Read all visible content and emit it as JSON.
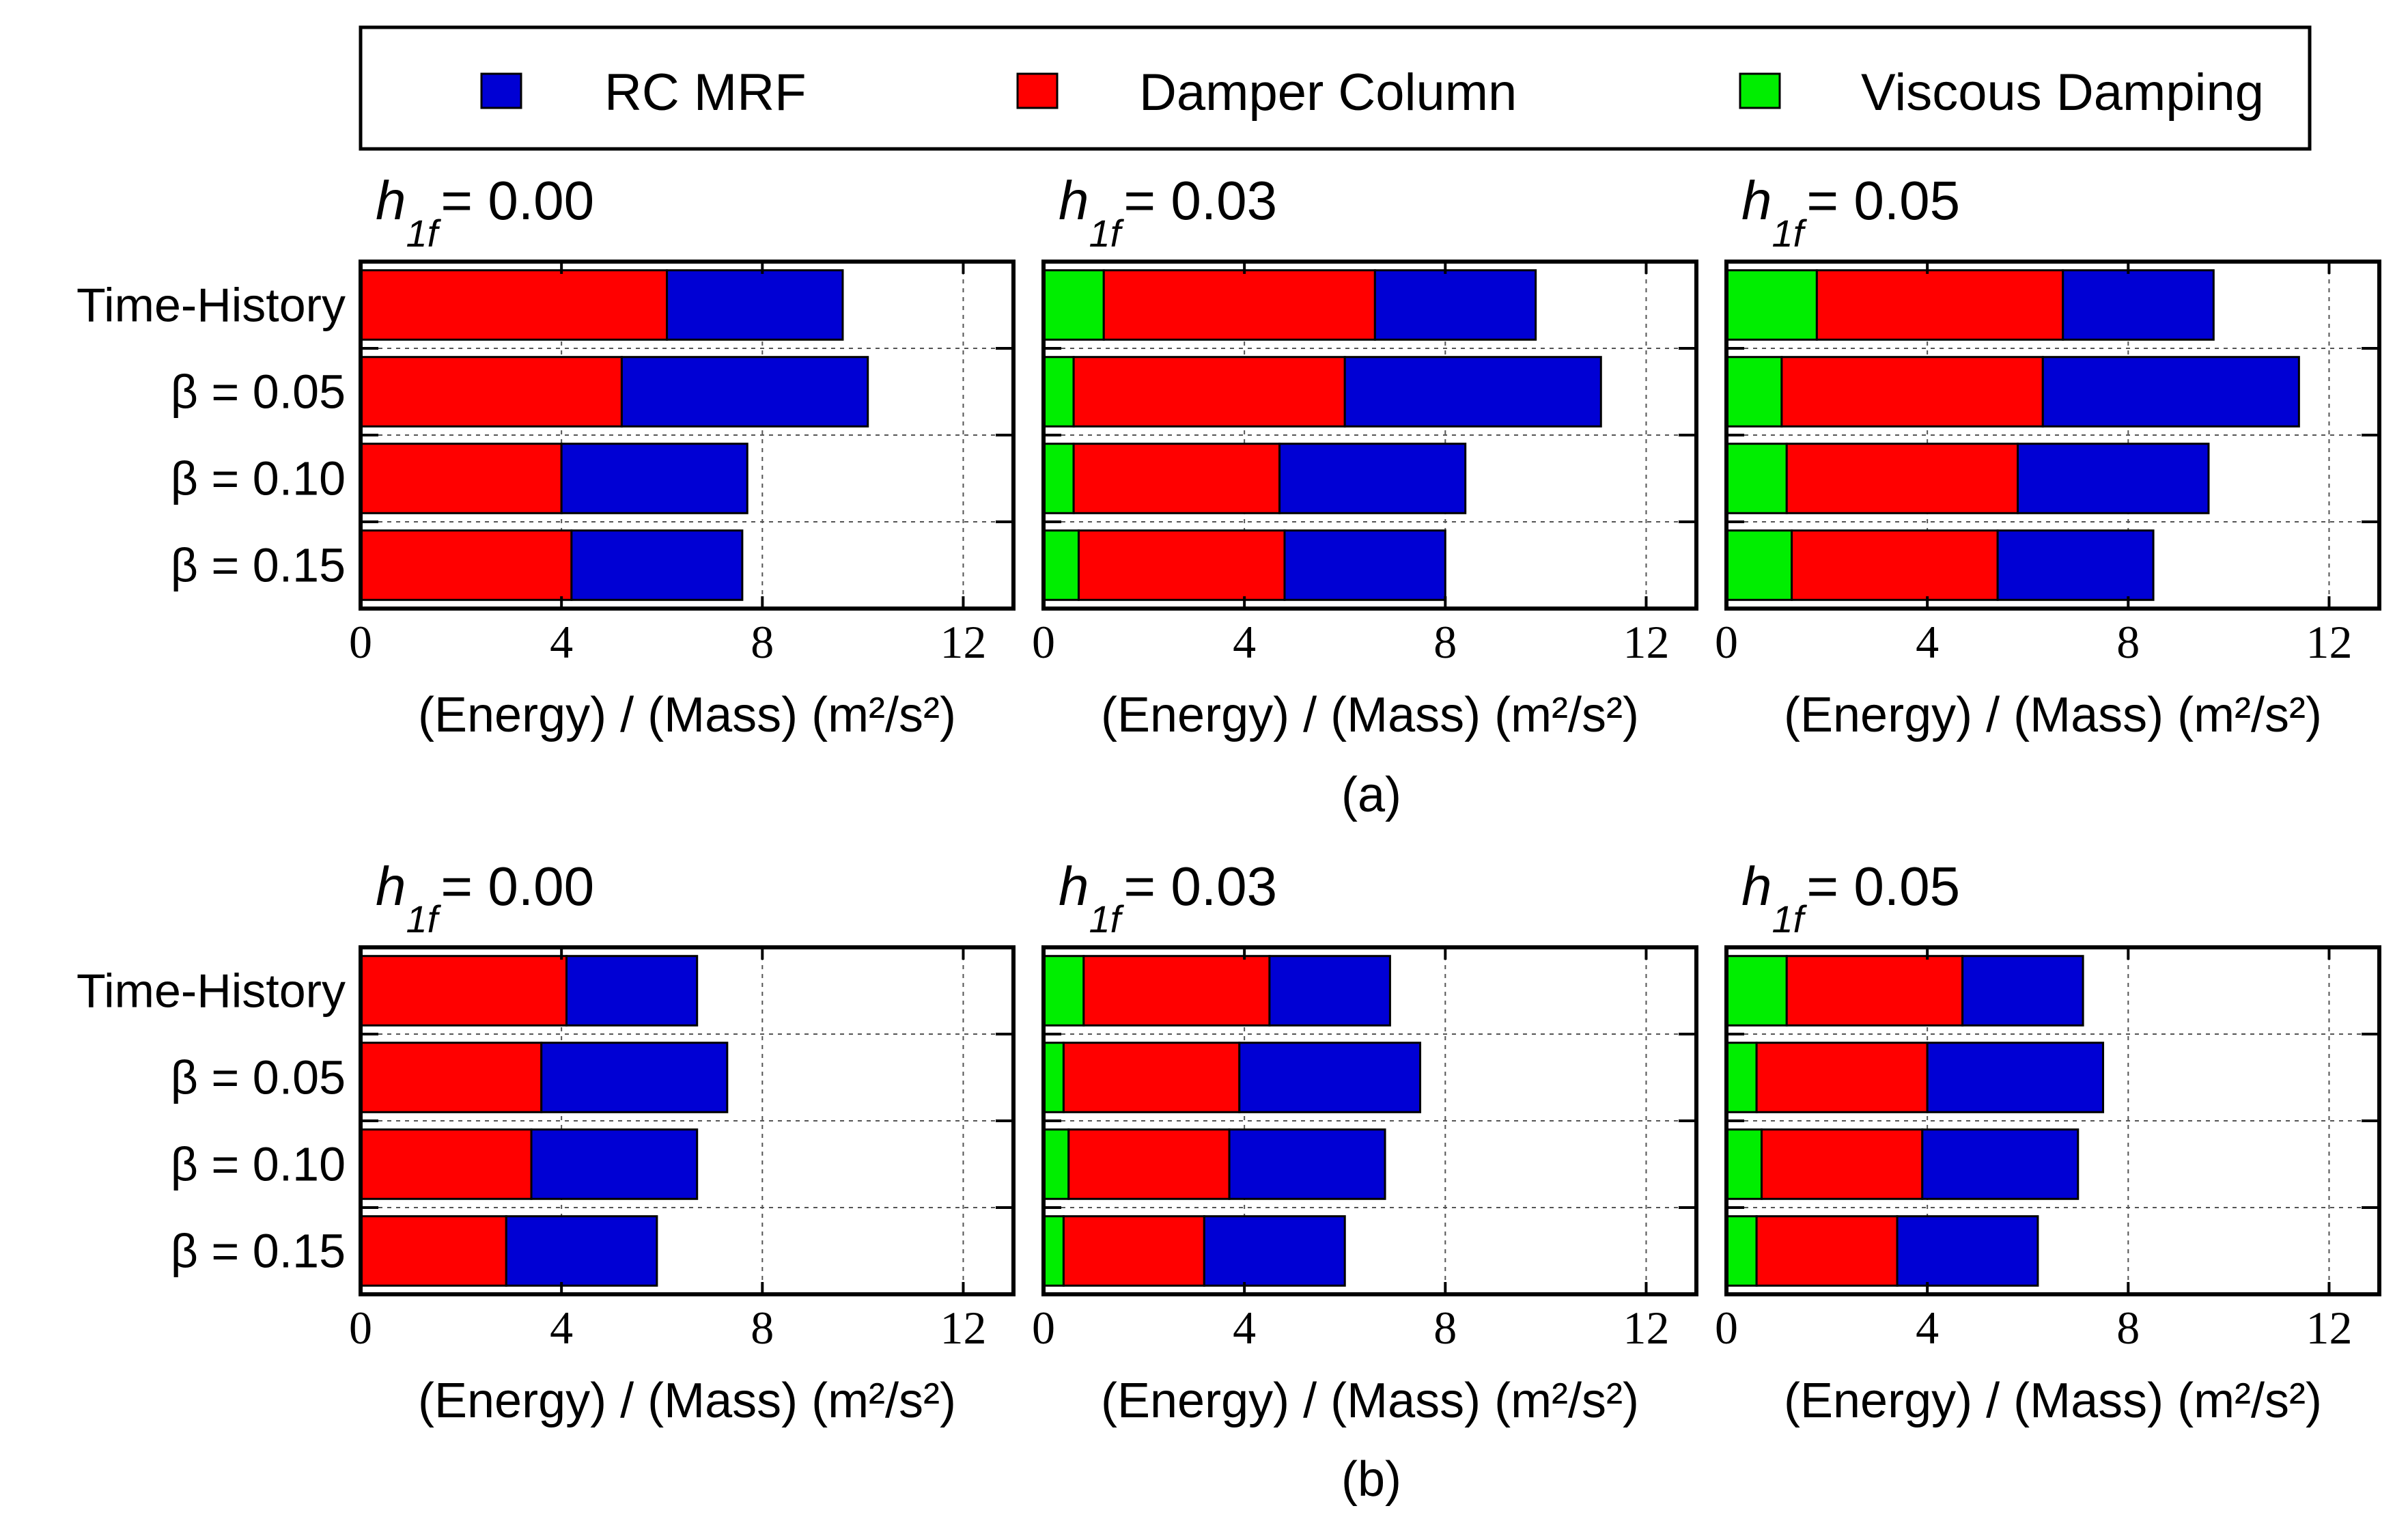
{
  "legend": [
    {
      "label": "RC MRF",
      "color": "#0000d4"
    },
    {
      "label": "Damper Column",
      "color": "#ff0000"
    },
    {
      "label": "Viscous Damping",
      "color": "#00ee00"
    }
  ],
  "chart_data": [
    {
      "subfigure": "(a)",
      "type": "bar",
      "orientation": "horizontal",
      "stacked": true,
      "categories": [
        "Time-History",
        "β = 0.05",
        "β = 0.10",
        "β = 0.15"
      ],
      "xlabel": "(Energy) / (Mass)  (m²/s²)",
      "xlim": [
        0,
        13
      ],
      "xticks": [
        0,
        4,
        8,
        12
      ],
      "panels": [
        {
          "title": "h1f = 0.00",
          "title_main": "h",
          "title_sub": "1f",
          "title_value": "= 0.00",
          "series": [
            {
              "name": "Viscous Damping",
              "values": [
                0,
                0,
                0,
                0
              ]
            },
            {
              "name": "Damper Column",
              "values": [
                6.1,
                5.2,
                4.0,
                4.2
              ]
            },
            {
              "name": "RC MRF",
              "values": [
                3.5,
                4.9,
                3.7,
                3.4
              ]
            }
          ]
        },
        {
          "title": "h1f = 0.03",
          "title_main": "h",
          "title_sub": "1f",
          "title_value": "= 0.03",
          "series": [
            {
              "name": "Viscous Damping",
              "values": [
                1.2,
                0.6,
                0.6,
                0.7
              ]
            },
            {
              "name": "Damper Column",
              "values": [
                5.4,
                5.4,
                4.1,
                4.1
              ]
            },
            {
              "name": "RC MRF",
              "values": [
                3.2,
                5.1,
                3.7,
                3.2
              ]
            }
          ]
        },
        {
          "title": "h1f = 0.05",
          "title_main": "h",
          "title_sub": "1f",
          "title_value": "= 0.05",
          "series": [
            {
              "name": "Viscous Damping",
              "values": [
                1.8,
                1.1,
                1.2,
                1.3
              ]
            },
            {
              "name": "Damper Column",
              "values": [
                4.9,
                5.2,
                4.6,
                4.1
              ]
            },
            {
              "name": "RC MRF",
              "values": [
                3.0,
                5.1,
                3.8,
                3.1
              ]
            }
          ]
        }
      ]
    },
    {
      "subfigure": "(b)",
      "type": "bar",
      "orientation": "horizontal",
      "stacked": true,
      "categories": [
        "Time-History",
        "β = 0.05",
        "β = 0.10",
        "β = 0.15"
      ],
      "xlabel": "(Energy) / (Mass)  (m²/s²)",
      "xlim": [
        0,
        13
      ],
      "xticks": [
        0,
        4,
        8,
        12
      ],
      "panels": [
        {
          "title": "h1f = 0.00",
          "title_main": "h",
          "title_sub": "1f",
          "title_value": "= 0.00",
          "series": [
            {
              "name": "Viscous Damping",
              "values": [
                0,
                0,
                0,
                0
              ]
            },
            {
              "name": "Damper Column",
              "values": [
                4.1,
                3.6,
                3.4,
                2.9
              ]
            },
            {
              "name": "RC MRF",
              "values": [
                2.6,
                3.7,
                3.3,
                3.0
              ]
            }
          ]
        },
        {
          "title": "h1f = 0.03",
          "title_main": "h",
          "title_sub": "1f",
          "title_value": "= 0.03",
          "series": [
            {
              "name": "Viscous Damping",
              "values": [
                0.8,
                0.4,
                0.5,
                0.4
              ]
            },
            {
              "name": "Damper Column",
              "values": [
                3.7,
                3.5,
                3.2,
                2.8
              ]
            },
            {
              "name": "RC MRF",
              "values": [
                2.4,
                3.6,
                3.1,
                2.8
              ]
            }
          ]
        },
        {
          "title": "h1f = 0.05",
          "title_main": "h",
          "title_sub": "1f",
          "title_value": "= 0.05",
          "series": [
            {
              "name": "Viscous Damping",
              "values": [
                1.2,
                0.6,
                0.7,
                0.6
              ]
            },
            {
              "name": "Damper Column",
              "values": [
                3.5,
                3.4,
                3.2,
                2.8
              ]
            },
            {
              "name": "RC MRF",
              "values": [
                2.4,
                3.5,
                3.1,
                2.8
              ]
            }
          ]
        }
      ]
    }
  ]
}
